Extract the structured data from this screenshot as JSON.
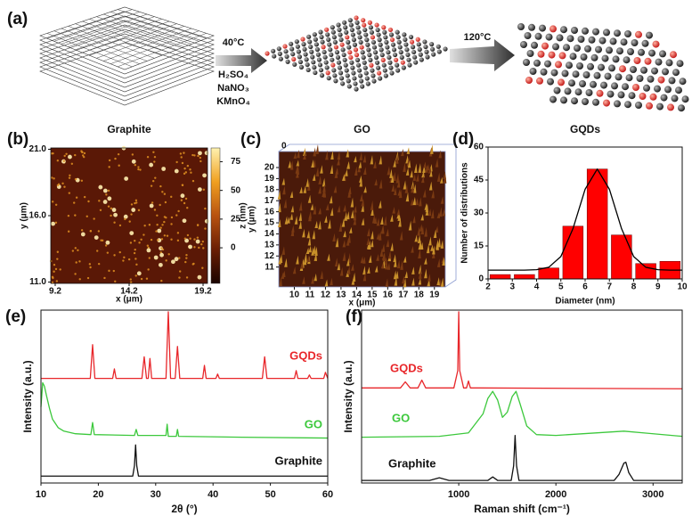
{
  "schematic": {
    "panel": "(a)",
    "step1_temp": "40°C",
    "reagents": [
      "H₂SO₄",
      "NaNO₃",
      "KMnO₄"
    ],
    "step2_temp": "120°C"
  },
  "chart_data": [
    {
      "type": "afm",
      "panel": "(b)",
      "title": "Graphite",
      "xlabel": "x (μm)",
      "ylabel": "y (μm)",
      "xlim": [
        8.9,
        19.5
      ],
      "xticks": [
        9.2,
        14.2,
        19.2
      ],
      "ylim": [
        10.9,
        21.1
      ],
      "yticks": [
        {
          "value": 11,
          "label": "11.0"
        },
        {
          "value": 16,
          "label": "16.0"
        },
        {
          "value": 21,
          "label": "21.0"
        }
      ],
      "zlabel": "z (nm)",
      "zlim": [
        -31,
        87
      ],
      "zticks": [
        0,
        25,
        50,
        75
      ],
      "colormap": [
        "#1a0400",
        "#6a1e04",
        "#b85210",
        "#f0a020",
        "#fff2b0"
      ]
    },
    {
      "type": "afm3d",
      "panel": "(c)",
      "title": "GO",
      "xlabel": "x (μm)",
      "ylabel": "y (μm)",
      "xlim": [
        9.0,
        19.7
      ],
      "xticks": [
        10,
        11,
        12,
        13,
        14,
        15,
        16,
        17,
        18,
        19
      ],
      "ylim": [
        9.2,
        21.45
      ],
      "yticks": [
        11,
        12,
        13,
        14,
        15,
        16,
        17,
        18,
        19,
        20
      ],
      "zticks": [
        0
      ]
    },
    {
      "type": "histogram",
      "panel": "(d)",
      "title": "GQDs",
      "xlabel": "Diameter (nm)",
      "ylabel": "Number of distributions",
      "bins": [
        2,
        3,
        4,
        5,
        6,
        7,
        8,
        9,
        10
      ],
      "values": [
        2,
        2,
        5,
        24,
        50,
        20,
        7,
        8
      ],
      "color": "#ff0000",
      "xlim": [
        2,
        10
      ],
      "xticks": [
        2,
        3,
        4,
        5,
        6,
        7,
        8,
        9,
        10
      ],
      "ylim": [
        0,
        60
      ],
      "yticks": [
        0,
        15,
        30,
        45,
        60
      ],
      "fit": {
        "color": "#000000",
        "x": [
          2,
          2.5,
          3,
          3.5,
          4,
          4.5,
          5,
          5.5,
          6,
          6.5,
          7,
          7.5,
          8,
          8.5,
          9,
          9.5,
          10
        ],
        "values": [
          4,
          4,
          4,
          4,
          4.2,
          5.3,
          10.2,
          22.9,
          40.8,
          50,
          40.8,
          22.9,
          10.2,
          5.3,
          4.2,
          4,
          4
        ]
      }
    },
    {
      "type": "line",
      "panel": "(e)",
      "xlabel": "2θ (°)",
      "ylabel": "Intensity (a.u.)",
      "xlim": [
        10,
        60
      ],
      "xticks": [
        10,
        20,
        30,
        40,
        50,
        60
      ],
      "ylim": [
        0,
        10
      ],
      "series": [
        {
          "name": "GQDs",
          "color": "#e8262a",
          "x": [
            10,
            18.6,
            19,
            19.4,
            22.5,
            22.8,
            23.1,
            27.6,
            28,
            28.4,
            28.7,
            29,
            29.3,
            31.8,
            32.2,
            32.6,
            33.4,
            33.8,
            34.2,
            38.2,
            38.5,
            38.8,
            40.5,
            40.8,
            41.1,
            48.6,
            49,
            49.4,
            54.2,
            54.5,
            54.8,
            56.5,
            56.8,
            57.1,
            59.3,
            59.6,
            60
          ],
          "values": [
            6.05,
            6.05,
            8.0,
            6.05,
            6.05,
            6.6,
            6.05,
            6.05,
            7.3,
            6.05,
            6.05,
            7.2,
            6.05,
            6.05,
            9.9,
            6.05,
            6.05,
            7.9,
            6.05,
            6.05,
            6.8,
            6.05,
            6.05,
            6.3,
            6.05,
            6.05,
            7.3,
            6.05,
            6.05,
            6.5,
            6.05,
            6.05,
            6.25,
            6.05,
            6.05,
            6.4,
            6.05
          ]
        },
        {
          "name": "GO",
          "color": "#3cc83c",
          "x": [
            10,
            10.3,
            10.6,
            11,
            11.5,
            12,
            13,
            14,
            16,
            18.7,
            19,
            19.3,
            26.3,
            26.6,
            26.9,
            31.8,
            32,
            32.2,
            33.6,
            33.8,
            34,
            45,
            60
          ],
          "values": [
            4.4,
            5.8,
            5.6,
            5.0,
            4.3,
            3.7,
            3.2,
            3.0,
            2.85,
            2.8,
            3.5,
            2.8,
            2.75,
            3.1,
            2.75,
            2.75,
            3.4,
            2.7,
            2.7,
            3.1,
            2.7,
            2.65,
            2.6
          ]
        },
        {
          "name": "Graphite",
          "color": "#111111",
          "x": [
            10,
            26,
            26.3,
            26.5,
            26.7,
            27,
            60
          ],
          "values": [
            0.4,
            0.4,
            1.0,
            2.2,
            1.0,
            0.4,
            0.4
          ]
        }
      ]
    },
    {
      "type": "line",
      "panel": "(f)",
      "xlabel": "Raman shift (cm⁻¹)",
      "ylabel": "Intensity (a.u.)",
      "xlim": [
        0,
        3300
      ],
      "xticks": [
        1000,
        2000,
        3000
      ],
      "ylim": [
        0,
        10
      ],
      "series": [
        {
          "name": "GQDs",
          "color": "#e8262a",
          "x": [
            0,
            400,
            450,
            500,
            580,
            620,
            660,
            950,
            990,
            1000,
            1010,
            1050,
            1080,
            1100,
            1120,
            1200,
            3300
          ],
          "values": [
            5.5,
            5.5,
            5.85,
            5.5,
            5.5,
            5.95,
            5.5,
            5.5,
            6.5,
            9.9,
            6.5,
            5.5,
            5.5,
            5.9,
            5.5,
            5.5,
            5.45
          ]
        },
        {
          "name": "GO",
          "color": "#3cc83c",
          "x": [
            0,
            800,
            1100,
            1250,
            1300,
            1350,
            1400,
            1450,
            1500,
            1550,
            1590,
            1630,
            1700,
            1800,
            2000,
            2700,
            2900,
            3300
          ],
          "values": [
            2.65,
            2.7,
            2.9,
            4.0,
            4.9,
            5.3,
            4.8,
            3.8,
            4.1,
            5.0,
            5.3,
            4.6,
            3.3,
            2.8,
            2.75,
            3.0,
            2.9,
            2.7
          ]
        },
        {
          "name": "Graphite",
          "color": "#111111",
          "x": [
            0,
            700,
            800,
            900,
            1300,
            1350,
            1400,
            1540,
            1565,
            1580,
            1595,
            1620,
            2600,
            2650,
            2700,
            2720,
            2750,
            2800,
            3300
          ],
          "values": [
            0.15,
            0.15,
            0.3,
            0.15,
            0.15,
            0.35,
            0.15,
            0.15,
            1.0,
            2.75,
            1.0,
            0.15,
            0.15,
            0.5,
            1.15,
            1.2,
            0.6,
            0.15,
            0.15
          ]
        }
      ]
    }
  ]
}
